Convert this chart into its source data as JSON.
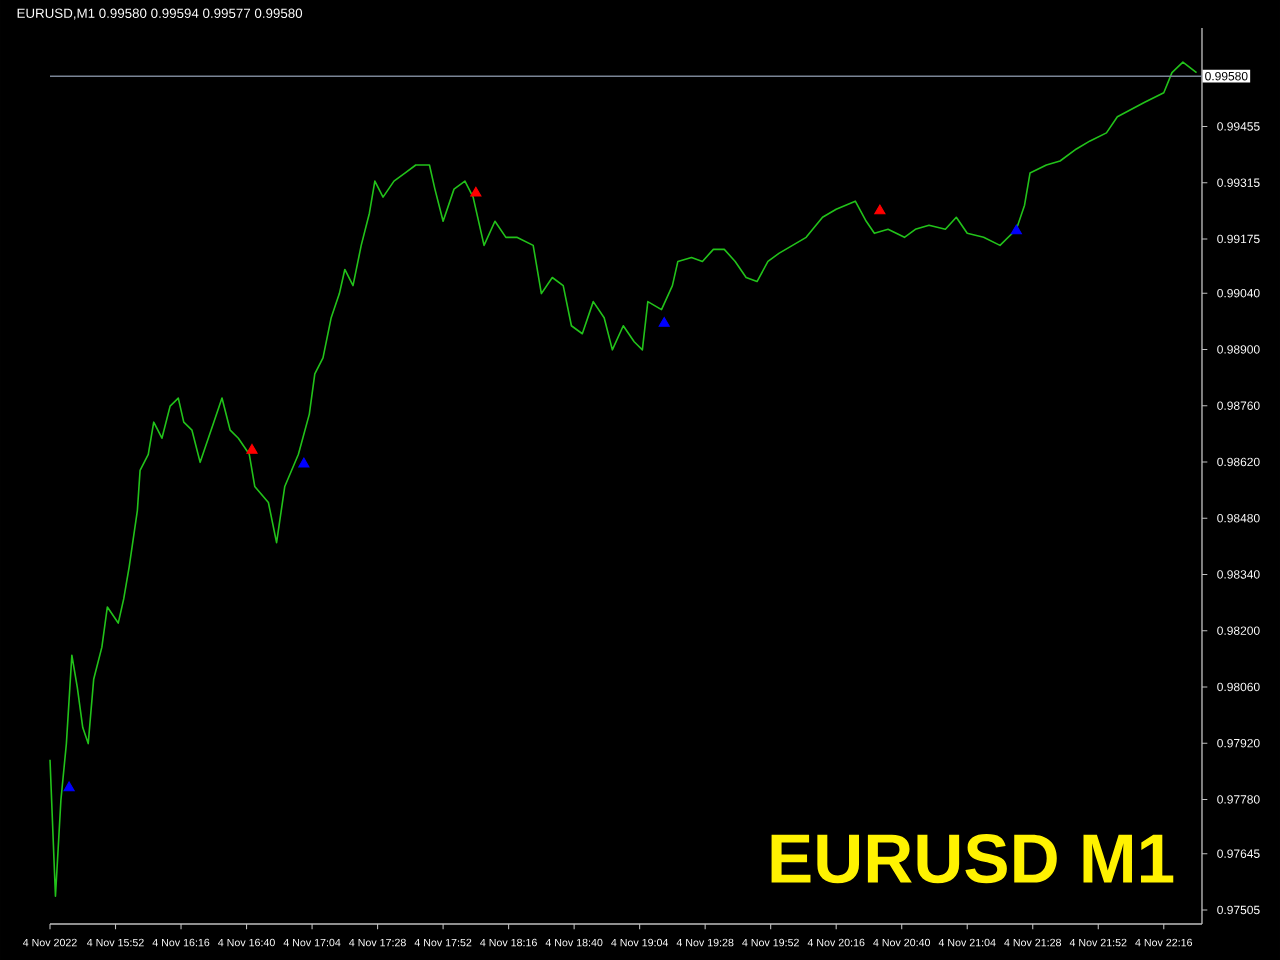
{
  "chart_data": {
    "type": "line",
    "title": "EURUSD,M1  0.99580 0.99594 0.99577 0.99580",
    "annotations": [
      "EURUSD M1"
    ],
    "xlim": [
      "2022-11-04T15:28",
      "2022-11-04T22:30"
    ],
    "ylim": [
      0.9747,
      0.997
    ],
    "xticks": [
      {
        "value": "2022-11-04T15:28",
        "label": "4 Nov 2022"
      },
      {
        "value": "2022-11-04T15:52",
        "label": "4 Nov 15:52"
      },
      {
        "value": "2022-11-04T16:16",
        "label": "4 Nov 16:16"
      },
      {
        "value": "2022-11-04T16:40",
        "label": "4 Nov 16:40"
      },
      {
        "value": "2022-11-04T17:04",
        "label": "4 Nov 17:04"
      },
      {
        "value": "2022-11-04T17:28",
        "label": "4 Nov 17:28"
      },
      {
        "value": "2022-11-04T17:52",
        "label": "4 Nov 17:52"
      },
      {
        "value": "2022-11-04T18:16",
        "label": "4 Nov 18:16"
      },
      {
        "value": "2022-11-04T18:40",
        "label": "4 Nov 18:40"
      },
      {
        "value": "2022-11-04T19:04",
        "label": "4 Nov 19:04"
      },
      {
        "value": "2022-11-04T19:28",
        "label": "4 Nov 19:28"
      },
      {
        "value": "2022-11-04T19:52",
        "label": "4 Nov 19:52"
      },
      {
        "value": "2022-11-04T20:16",
        "label": "4 Nov 20:16"
      },
      {
        "value": "2022-11-04T20:40",
        "label": "4 Nov 20:40"
      },
      {
        "value": "2022-11-04T21:04",
        "label": "4 Nov 21:04"
      },
      {
        "value": "2022-11-04T21:28",
        "label": "4 Nov 21:28"
      },
      {
        "value": "2022-11-04T21:52",
        "label": "4 Nov 21:52"
      },
      {
        "value": "2022-11-04T22:16",
        "label": "4 Nov 22:16"
      }
    ],
    "yticks": [
      {
        "value": 0.97505,
        "label": "0.97505"
      },
      {
        "value": 0.97645,
        "label": "0.97645"
      },
      {
        "value": 0.9778,
        "label": "0.97780"
      },
      {
        "value": 0.9792,
        "label": "0.97920"
      },
      {
        "value": 0.9806,
        "label": "0.98060"
      },
      {
        "value": 0.982,
        "label": "0.98200"
      },
      {
        "value": 0.9834,
        "label": "0.98340"
      },
      {
        "value": 0.9848,
        "label": "0.98480"
      },
      {
        "value": 0.9862,
        "label": "0.98620"
      },
      {
        "value": 0.9876,
        "label": "0.98760"
      },
      {
        "value": 0.989,
        "label": "0.98900"
      },
      {
        "value": 0.9904,
        "label": "0.99040"
      },
      {
        "value": 0.99175,
        "label": "0.99175"
      },
      {
        "value": 0.99315,
        "label": "0.99315"
      },
      {
        "value": 0.99455,
        "label": "0.99455"
      }
    ],
    "ref_lines": [
      {
        "axis": "y",
        "value": 0.9958,
        "label": "0.99580",
        "color": "#7a8596"
      }
    ],
    "line_style": "solid",
    "series": [
      {
        "color": "#22c21a",
        "x": [
          "2022-11-04T15:28",
          "2022-11-04T15:30",
          "2022-11-04T15:32",
          "2022-11-04T15:34",
          "2022-11-04T15:36",
          "2022-11-04T15:38",
          "2022-11-04T15:40",
          "2022-11-04T15:42",
          "2022-11-04T15:44",
          "2022-11-04T15:47",
          "2022-11-04T15:49",
          "2022-11-04T15:53",
          "2022-11-04T15:55",
          "2022-11-04T15:57",
          "2022-11-04T16:00",
          "2022-11-04T16:01",
          "2022-11-04T16:04",
          "2022-11-04T16:06",
          "2022-11-04T16:09",
          "2022-11-04T16:12",
          "2022-11-04T16:15",
          "2022-11-04T16:17",
          "2022-11-04T16:20",
          "2022-11-04T16:23",
          "2022-11-04T16:26",
          "2022-11-04T16:28",
          "2022-11-04T16:31",
          "2022-11-04T16:34",
          "2022-11-04T16:37",
          "2022-11-04T16:41",
          "2022-11-04T16:43",
          "2022-11-04T16:48",
          "2022-11-04T16:51",
          "2022-11-04T16:54",
          "2022-11-04T16:59",
          "2022-11-04T17:03",
          "2022-11-04T17:05",
          "2022-11-04T17:08",
          "2022-11-04T17:11",
          "2022-11-04T17:14",
          "2022-11-04T17:16",
          "2022-11-04T17:19",
          "2022-11-04T17:22",
          "2022-11-04T17:25",
          "2022-11-04T17:27",
          "2022-11-04T17:30",
          "2022-11-04T17:34",
          "2022-11-04T17:38",
          "2022-11-04T17:42",
          "2022-11-04T17:47",
          "2022-11-04T17:49",
          "2022-11-04T17:52",
          "2022-11-04T17:56",
          "2022-11-04T18:00",
          "2022-11-04T18:03",
          "2022-11-04T18:07",
          "2022-11-04T18:11",
          "2022-11-04T18:15",
          "2022-11-04T18:19",
          "2022-11-04T18:25",
          "2022-11-04T18:28",
          "2022-11-04T18:32",
          "2022-11-04T18:36",
          "2022-11-04T18:39",
          "2022-11-04T18:43",
          "2022-11-04T18:47",
          "2022-11-04T18:51",
          "2022-11-04T18:54",
          "2022-11-04T18:58",
          "2022-11-04T19:02",
          "2022-11-04T19:05",
          "2022-11-04T19:07",
          "2022-11-04T19:12",
          "2022-11-04T19:16",
          "2022-11-04T19:18",
          "2022-11-04T19:23",
          "2022-11-04T19:27",
          "2022-11-04T19:31",
          "2022-11-04T19:35",
          "2022-11-04T19:39",
          "2022-11-04T19:43",
          "2022-11-04T19:47",
          "2022-11-04T19:51",
          "2022-11-04T19:55",
          "2022-11-04T20:00",
          "2022-11-04T20:05",
          "2022-11-04T20:11",
          "2022-11-04T20:16",
          "2022-11-04T20:23",
          "2022-11-04T20:27",
          "2022-11-04T20:30",
          "2022-11-04T20:35",
          "2022-11-04T20:41",
          "2022-11-04T20:45",
          "2022-11-04T20:50",
          "2022-11-04T20:56",
          "2022-11-04T21:00",
          "2022-11-04T21:04",
          "2022-11-04T21:10",
          "2022-11-04T21:16",
          "2022-11-04T21:22",
          "2022-11-04T21:25",
          "2022-11-04T21:27",
          "2022-11-04T21:33",
          "2022-11-04T21:38",
          "2022-11-04T21:44",
          "2022-11-04T21:49",
          "2022-11-04T21:55",
          "2022-11-04T21:59",
          "2022-11-04T22:09",
          "2022-11-04T22:16",
          "2022-11-04T22:19",
          "2022-11-04T22:23",
          "2022-11-04T22:28"
        ],
        "values": [
          0.97879,
          0.97539,
          0.97779,
          0.97919,
          0.98139,
          0.98059,
          0.97959,
          0.97919,
          0.98079,
          0.98159,
          0.98259,
          0.98219,
          0.98279,
          0.98359,
          0.98499,
          0.98599,
          0.98639,
          0.98719,
          0.98679,
          0.98759,
          0.98779,
          0.98719,
          0.98699,
          0.98619,
          0.98679,
          0.98719,
          0.98779,
          0.98699,
          0.98679,
          0.98639,
          0.98559,
          0.98519,
          0.98419,
          0.98559,
          0.98639,
          0.98739,
          0.98839,
          0.98879,
          0.98979,
          0.99039,
          0.99099,
          0.99059,
          0.99159,
          0.99239,
          0.99319,
          0.99279,
          0.99319,
          0.99339,
          0.99359,
          0.99359,
          0.99299,
          0.99219,
          0.99299,
          0.99319,
          0.99279,
          0.99159,
          0.99219,
          0.99179,
          0.99179,
          0.99159,
          0.99039,
          0.99079,
          0.99059,
          0.98959,
          0.98939,
          0.99019,
          0.98979,
          0.98899,
          0.98959,
          0.98919,
          0.98899,
          0.99019,
          0.98999,
          0.99059,
          0.99119,
          0.99129,
          0.99119,
          0.99149,
          0.99149,
          0.99119,
          0.99079,
          0.99069,
          0.99119,
          0.99139,
          0.99159,
          0.99179,
          0.99229,
          0.99249,
          0.99269,
          0.99219,
          0.99189,
          0.99199,
          0.99179,
          0.99199,
          0.99209,
          0.99199,
          0.99229,
          0.99189,
          0.99179,
          0.99159,
          0.99199,
          0.99259,
          0.99339,
          0.99359,
          0.99369,
          0.99399,
          0.99419,
          0.99439,
          0.99479,
          0.99515,
          0.99539,
          0.99589,
          0.99615,
          0.99589
        ]
      },
      {
        "type": "scatter",
        "color": "#0000ff",
        "marker": "triangle",
        "x": [
          "2022-11-04T15:35",
          "2022-11-04T17:01",
          "2022-11-04T19:13",
          "2022-11-04T21:22"
        ],
        "values": [
          0.97809,
          0.98615,
          0.98965,
          0.99195
        ]
      },
      {
        "type": "scatter",
        "color": "#ff0000",
        "marker": "triangle",
        "x": [
          "2022-11-04T16:42",
          "2022-11-04T18:04",
          "2022-11-04T20:32"
        ],
        "values": [
          0.98649,
          0.99289,
          0.99245
        ]
      }
    ]
  }
}
